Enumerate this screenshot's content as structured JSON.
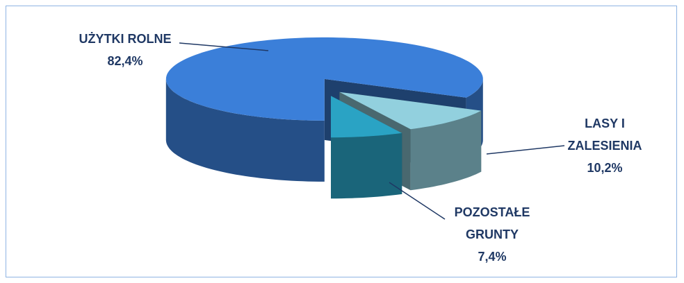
{
  "chart_data": {
    "type": "pie3d",
    "categories": [
      "UŻYTKI ROLNE",
      "LASY I ZALESIENIA",
      "POZOSTAŁE GRUNTY"
    ],
    "values": [
      82.4,
      10.2,
      7.4
    ],
    "value_labels": [
      "82,4%",
      "10,2%",
      "7,4%"
    ],
    "colors": [
      "#3b7fd9",
      "#92d0de",
      "#2aa3c4"
    ]
  }
}
